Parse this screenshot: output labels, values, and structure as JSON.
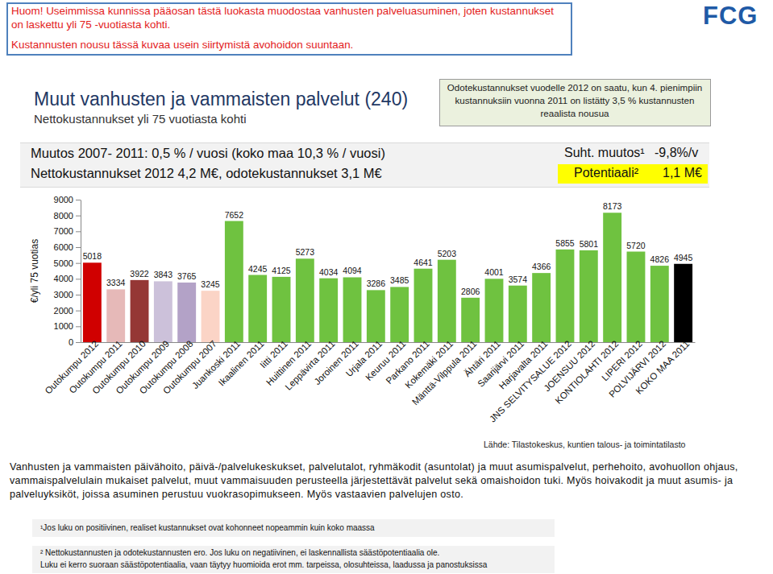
{
  "page": {
    "notice": [
      "Huom! Useimmissa kunnissa pääosan tästä luokasta muodostaa vanhusten palveluasuminen, joten kustannukset on laskettu yli 75 -vuotiasta kohti.",
      "Kustannusten nousu tässä kuvaa usein siirtymistä avohoidon suuntaan."
    ],
    "logo": "FCG",
    "expected_note": "Odotekustannukset vuodelle 2012 on saatu, kun 4. pienimpiin kustannuksiin vuonna 2011 on listätty 3,5 % kustannusten reaalista nousua",
    "change_line": "Muutos 2007- 2011: 0,5 % / vuosi (koko maa 10,3 % / vuosi)",
    "cost_line": "Nettokustannukset 2012 4,2 M€, odotekustannukset 3,1 M€",
    "relative_change_label": "Suht. muutos¹",
    "relative_change_value": "-9,8%/v",
    "potential_label": "Potentiaali²",
    "potential_value": "1,1 M€",
    "description": "Vanhusten ja vammaisten päivähoito, päivä-/palvelukeskukset, palvelutalot, ryhmäkodit (asuntolat) ja muut asumispalvelut, perhehoito, avohuollon ohjaus, vammaispalvelulain mukaiset palvelut, muut vammaisuuden perusteella järjestettävät palvelut sekä omaishoidon tuki. Myös hoivakodit ja muut asumis- ja palveluyksiköt, joissa asuminen perustuu vuokrasopimukseen. Myös vastaavien palvelujen osto.",
    "footnote1": "¹Jos luku on positiivinen, realiset kustannukset ovat kohonneet nopeammin kuin koko maassa",
    "footnote2": [
      "² Nettokustannusten ja odotekustannusten ero. Jos luku on negatiivinen, ei laskennallista säästöpotentiaalia ole.",
      "Luku ei kerro suoraan säästöpotentiaalia, vaan täytyy huomioida erot mm. tarpeissa, olosuhteissa, laadussa ja panostuksissa"
    ]
  },
  "chart_data": {
    "type": "bar",
    "title": "Muut vanhusten ja vammaisten palvelut (240)",
    "subtitle": "Nettokustannukset yli 75 vuotiasta kohti",
    "y_label": "€/yli 75 vuotias",
    "source": "Lähde: Tilastokeskus, kuntien talous- ja toimintatilasto",
    "categories": [
      "Outokumpu 2012",
      "Outokumpu 2011",
      "Outokumpu 2010",
      "Outokumpu 2009",
      "Outokumpu 2008",
      "Outokumpu 2007",
      "Juankoski 2011",
      "Ikaalinen 2011",
      "Iitti 2011",
      "Huittinen 2011",
      "Leppävirta 2011",
      "Joroinen 2011",
      "Urjala 2011",
      "Keuruu 2011",
      "Parkano 2011",
      "Kokemäki 2011",
      "Mänttä-Vilppula 2011",
      "Ähtäri 2011",
      "Saarijärvi 2011",
      "Harjavalta 2011",
      "JNS SELVITYSALUE 2012",
      "JOENSUU 2012",
      "KONTIOLAHTI 2012",
      "LIPERI 2012",
      "POLVIJÄRVI 2012",
      "KOKO MAA 2011"
    ],
    "values": [
      5018,
      3334,
      3922,
      3843,
      3765,
      3245,
      7652,
      4245,
      4125,
      5273,
      4034,
      4094,
      3286,
      3485,
      4641,
      5203,
      2806,
      4001,
      3574,
      4366,
      5855,
      5801,
      8173,
      5720,
      4826,
      4945
    ],
    "colors": [
      "#d00000",
      "#e6b9b8",
      "#953735",
      "#ccc1da",
      "#b3a2c7",
      "#fbd4c6",
      "#6fc240",
      "#6fc240",
      "#6fc240",
      "#6fc240",
      "#6fc240",
      "#6fc240",
      "#6fc240",
      "#6fc240",
      "#6fc240",
      "#6fc240",
      "#6fc240",
      "#6fc240",
      "#6fc240",
      "#6fc240",
      "#6fc240",
      "#6fc240",
      "#6fc240",
      "#6fc240",
      "#6fc240",
      "#000000"
    ],
    "ylim": [
      0,
      9000
    ],
    "yticks": [
      0,
      1000,
      2000,
      3000,
      4000,
      5000,
      6000,
      7000,
      8000,
      9000
    ],
    "data_labels": true,
    "grid": false
  }
}
